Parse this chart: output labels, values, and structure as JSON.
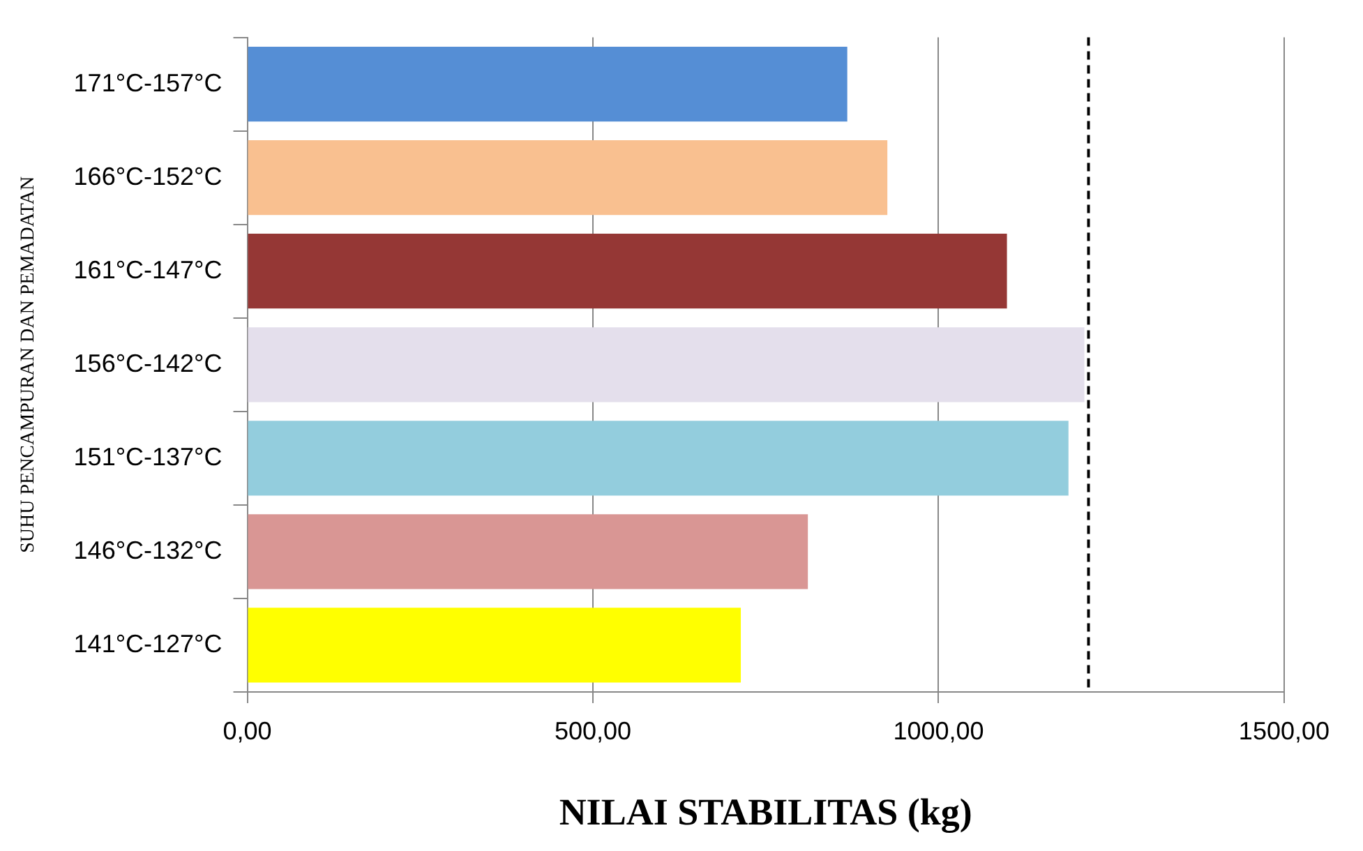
{
  "chart_data": {
    "type": "bar",
    "orientation": "horizontal",
    "xlabel": "NILAI STABILITAS (kg)",
    "ylabel": "SUHU PENCAMPURAN DAN PEMADATAN",
    "categories": [
      "171°C-157°C",
      "166°C-152°C",
      "161°C-147°C",
      "156°C-142°C",
      "151°C-137°C",
      "146°C-132°C",
      "141°C-127°C"
    ],
    "values": [
      868,
      926,
      1099,
      1211,
      1188,
      811,
      714
    ],
    "colors": [
      "#558ed5",
      "#f9c090",
      "#953735",
      "#e4dfec",
      "#93cddd",
      "#d99694",
      "#ffff00"
    ],
    "xlim": [
      0,
      1500
    ],
    "xticks": [
      {
        "value": 0,
        "label": "0,00"
      },
      {
        "value": 500,
        "label": "500,00"
      },
      {
        "value": 1000,
        "label": "1000,00"
      },
      {
        "value": 1500,
        "label": "1500,00"
      }
    ],
    "ref_lines": [
      {
        "axis": "x",
        "value": 1217,
        "color": "#000000",
        "line_style": "dashed"
      }
    ],
    "grid": "x",
    "legend": false
  }
}
